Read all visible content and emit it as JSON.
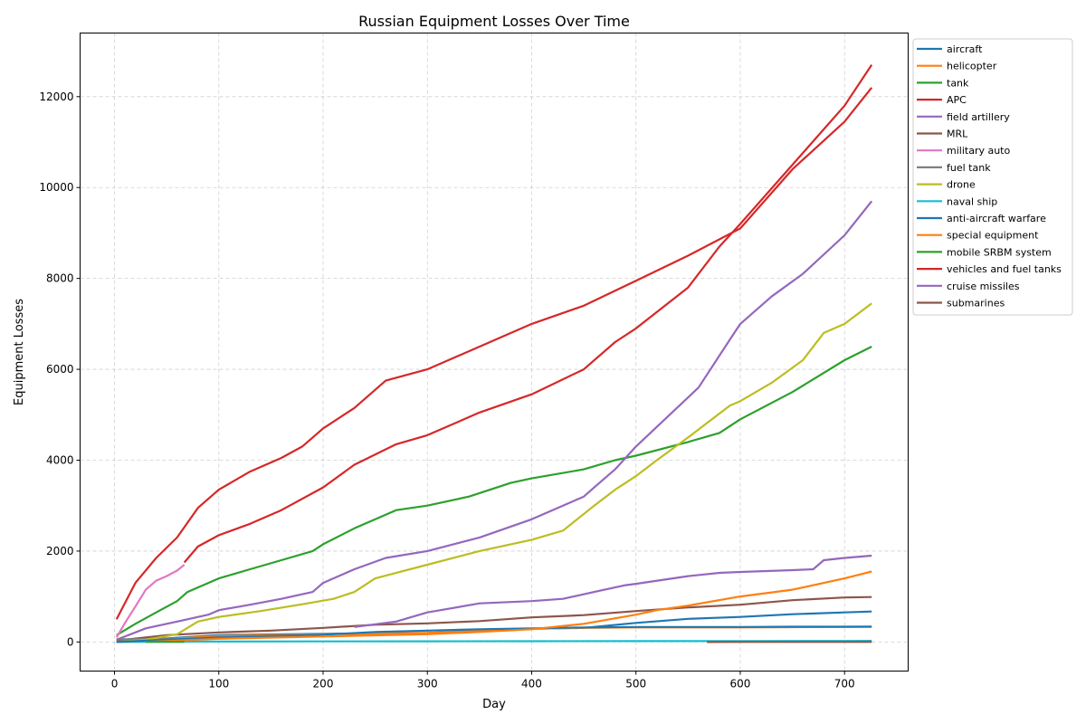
{
  "chart_data": {
    "type": "line",
    "title": "Russian Equipment Losses Over Time",
    "xlabel": "Day",
    "ylabel": "Equipment Losses",
    "xlim": [
      -33,
      761
    ],
    "ylim": [
      -640,
      13400
    ],
    "x_ticks": [
      0,
      100,
      200,
      300,
      400,
      500,
      600,
      700
    ],
    "x_tick_labels": [
      "0",
      "100",
      "200",
      "300",
      "400",
      "500",
      "600",
      "700"
    ],
    "y_ticks": [
      0,
      2000,
      4000,
      6000,
      8000,
      10000,
      12000
    ],
    "y_tick_labels": [
      "0",
      "2000",
      "4000",
      "6000",
      "8000",
      "10000",
      "12000"
    ],
    "grid": true,
    "legend_position": "outside-top-right",
    "series": [
      {
        "name": "aircraft",
        "color": "#1f77b4",
        "x": [
          2,
          100,
          200,
          300,
          400,
          450,
          500,
          550,
          600,
          650,
          700,
          726
        ],
        "y": [
          10,
          150,
          180,
          200,
          290,
          310,
          420,
          510,
          550,
          610,
          650,
          670
        ]
      },
      {
        "name": "helicopter",
        "color": "#ff7f0e",
        "x": [
          2,
          100,
          200,
          300,
          400,
          450,
          500,
          550,
          600,
          650,
          700,
          726
        ],
        "y": [
          7,
          130,
          170,
          200,
          290,
          310,
          320,
          320,
          320,
          325,
          330,
          330
        ]
      },
      {
        "name": "tank",
        "color": "#2ca02c",
        "x": [
          2,
          20,
          40,
          60,
          70,
          100,
          130,
          160,
          190,
          200,
          230,
          270,
          300,
          340,
          380,
          400,
          450,
          480,
          500,
          550,
          580,
          600,
          650,
          700,
          726
        ],
        "y": [
          150,
          400,
          650,
          900,
          1100,
          1400,
          1600,
          1800,
          2000,
          2150,
          2500,
          2900,
          3000,
          3200,
          3500,
          3600,
          3800,
          4000,
          4100,
          4400,
          4600,
          4900,
          5500,
          6200,
          6500
        ]
      },
      {
        "name": "APC",
        "color": "#d62728",
        "x": [
          2,
          20,
          40,
          60,
          80,
          100,
          130,
          160,
          180,
          190,
          200,
          230,
          260,
          300,
          350,
          400,
          450,
          500,
          550,
          600,
          650,
          700,
          726
        ],
        "y": [
          500,
          1300,
          1850,
          2300,
          2950,
          3350,
          3750,
          4050,
          4300,
          4500,
          4700,
          5150,
          5750,
          6000,
          6500,
          7000,
          7400,
          7950,
          8500,
          9100,
          10400,
          11450,
          12200
        ]
      },
      {
        "name": "field artillery",
        "color": "#9467bd",
        "x": [
          2,
          30,
          60,
          90,
          100,
          130,
          160,
          190,
          200,
          230,
          260,
          300,
          350,
          400,
          450,
          460,
          480,
          500,
          530,
          560,
          590,
          600,
          630,
          660,
          700,
          726
        ],
        "y": [
          50,
          300,
          450,
          600,
          700,
          820,
          950,
          1100,
          1300,
          1600,
          1850,
          2000,
          2300,
          2700,
          3200,
          3400,
          3800,
          4300,
          4950,
          5600,
          6650,
          7000,
          7600,
          8100,
          8950,
          9700
        ]
      },
      {
        "name": "MRL",
        "color": "#8c564b",
        "x": [
          2,
          50,
          100,
          150,
          200,
          250,
          300,
          350,
          400,
          450,
          500,
          550,
          600,
          650,
          700,
          726
        ],
        "y": [
          30,
          150,
          210,
          250,
          310,
          380,
          410,
          460,
          540,
          590,
          680,
          760,
          820,
          920,
          980,
          990
        ]
      },
      {
        "name": "military auto",
        "color": "#e377c2",
        "x": [
          2,
          10,
          20,
          30,
          40,
          50,
          60,
          67
        ],
        "y": [
          100,
          420,
          780,
          1150,
          1350,
          1450,
          1570,
          1700
        ]
      },
      {
        "name": "fuel tank",
        "color": "#7f7f7f",
        "x": [
          2,
          20,
          40,
          60,
          67
        ],
        "y": [
          60,
          60,
          60,
          75,
          75
        ]
      },
      {
        "name": "drone",
        "color": "#bcbd22",
        "x": [
          2,
          30,
          60,
          80,
          100,
          140,
          180,
          210,
          230,
          250,
          300,
          350,
          400,
          430,
          460,
          480,
          500,
          520,
          550,
          570,
          590,
          600,
          630,
          660,
          680,
          700,
          726
        ],
        "y": [
          0,
          50,
          170,
          450,
          550,
          680,
          830,
          950,
          1100,
          1400,
          1700,
          2000,
          2250,
          2450,
          3000,
          3350,
          3650,
          4000,
          4500,
          4850,
          5200,
          5300,
          5700,
          6200,
          6800,
          7000,
          7450
        ]
      },
      {
        "name": "naval ship",
        "color": "#17becf",
        "x": [
          2,
          100,
          200,
          300,
          400,
          500,
          600,
          700,
          726
        ],
        "y": [
          2,
          10,
          14,
          16,
          18,
          20,
          22,
          24,
          25
        ]
      },
      {
        "name": "anti-aircraft warfare",
        "color": "#1f77b4",
        "x": [
          2,
          100,
          200,
          250,
          300,
          350,
          400,
          450,
          500,
          550,
          600,
          650,
          700,
          726
        ],
        "y": [
          0,
          100,
          160,
          220,
          250,
          280,
          300,
          320,
          330,
          330,
          330,
          335,
          335,
          340
        ]
      },
      {
        "name": "special equipment",
        "color": "#ff7f0e",
        "x": [
          30,
          100,
          200,
          300,
          350,
          400,
          450,
          500,
          520,
          550,
          600,
          650,
          700,
          726
        ],
        "y": [
          0,
          70,
          120,
          170,
          220,
          280,
          400,
          600,
          700,
          800,
          1000,
          1150,
          1400,
          1550
        ]
      },
      {
        "name": "mobile SRBM system",
        "color": "#2ca02c",
        "x": [
          30,
          67
        ],
        "y": [
          4,
          4
        ]
      },
      {
        "name": "vehicles and fuel tanks",
        "color": "#d62728",
        "x": [
          67,
          80,
          100,
          130,
          160,
          200,
          230,
          270,
          300,
          350,
          400,
          450,
          480,
          500,
          550,
          580,
          600,
          650,
          700,
          726
        ],
        "y": [
          1750,
          2100,
          2350,
          2600,
          2900,
          3400,
          3900,
          4350,
          4550,
          5050,
          5450,
          6000,
          6600,
          6900,
          7800,
          8700,
          9200,
          10500,
          11800,
          12700
        ]
      },
      {
        "name": "cruise missiles",
        "color": "#9467bd",
        "x": [
          230,
          270,
          300,
          350,
          400,
          430,
          460,
          490,
          500,
          550,
          580,
          600,
          650,
          670,
          680,
          700,
          726
        ],
        "y": [
          330,
          450,
          650,
          850,
          900,
          950,
          1100,
          1250,
          1280,
          1450,
          1520,
          1540,
          1580,
          1600,
          1800,
          1850,
          1900
        ]
      },
      {
        "name": "submarines",
        "color": "#8c564b",
        "x": [
          568,
          600,
          650,
          700,
          726
        ],
        "y": [
          0,
          1,
          1,
          1,
          1
        ]
      }
    ]
  }
}
